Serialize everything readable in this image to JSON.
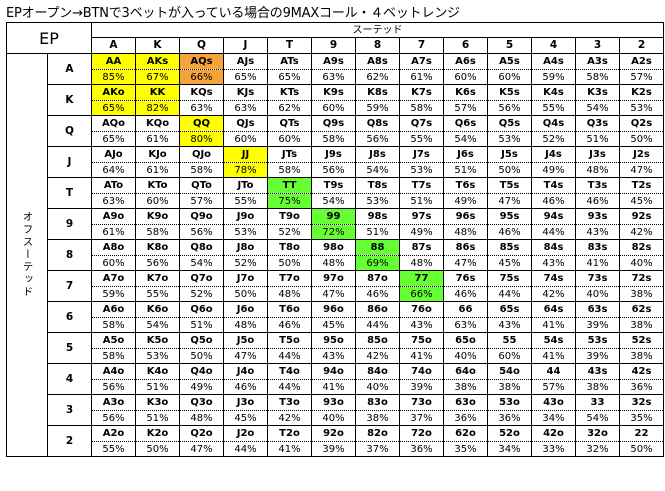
{
  "title": "EPオープン→BTNで3ベットが入っている場合の9MAXコール・４ベットレンジ",
  "corner_label": "EP",
  "suited_label": "スーテッド",
  "offsuit_label": "オフスーテッド",
  "ranks": [
    "A",
    "K",
    "Q",
    "J",
    "T",
    "9",
    "8",
    "7",
    "6",
    "5",
    "4",
    "3",
    "2"
  ],
  "colors": {
    "yellow": "#FFFF00",
    "orange": "#F4A438",
    "green": "#66FF33",
    "white": "#FFFFFF"
  },
  "rows": [
    {
      "cells": [
        {
          "hand": "AA",
          "pct": "85%",
          "color": "yellow"
        },
        {
          "hand": "AKs",
          "pct": "67%",
          "color": "yellow"
        },
        {
          "hand": "AQs",
          "pct": "66%",
          "color": "orange"
        },
        {
          "hand": "AJs",
          "pct": "65%"
        },
        {
          "hand": "ATs",
          "pct": "65%"
        },
        {
          "hand": "A9s",
          "pct": "63%"
        },
        {
          "hand": "A8s",
          "pct": "62%"
        },
        {
          "hand": "A7s",
          "pct": "61%"
        },
        {
          "hand": "A6s",
          "pct": "60%"
        },
        {
          "hand": "A5s",
          "pct": "60%"
        },
        {
          "hand": "A4s",
          "pct": "59%"
        },
        {
          "hand": "A3s",
          "pct": "58%"
        },
        {
          "hand": "A2s",
          "pct": "57%"
        }
      ]
    },
    {
      "cells": [
        {
          "hand": "AKo",
          "pct": "65%",
          "color": "yellow"
        },
        {
          "hand": "KK",
          "pct": "82%",
          "color": "yellow"
        },
        {
          "hand": "KQs",
          "pct": "63%"
        },
        {
          "hand": "KJs",
          "pct": "63%"
        },
        {
          "hand": "KTs",
          "pct": "62%"
        },
        {
          "hand": "K9s",
          "pct": "60%"
        },
        {
          "hand": "K8s",
          "pct": "59%"
        },
        {
          "hand": "K7s",
          "pct": "58%"
        },
        {
          "hand": "K6s",
          "pct": "57%"
        },
        {
          "hand": "K5s",
          "pct": "56%"
        },
        {
          "hand": "K4s",
          "pct": "55%"
        },
        {
          "hand": "K3s",
          "pct": "54%"
        },
        {
          "hand": "K2s",
          "pct": "53%"
        }
      ]
    },
    {
      "cells": [
        {
          "hand": "AQo",
          "pct": "65%"
        },
        {
          "hand": "KQo",
          "pct": "61%"
        },
        {
          "hand": "QQ",
          "pct": "80%",
          "color": "yellow"
        },
        {
          "hand": "QJs",
          "pct": "60%"
        },
        {
          "hand": "QTs",
          "pct": "60%"
        },
        {
          "hand": "Q9s",
          "pct": "58%"
        },
        {
          "hand": "Q8s",
          "pct": "56%"
        },
        {
          "hand": "Q7s",
          "pct": "55%"
        },
        {
          "hand": "Q6s",
          "pct": "54%"
        },
        {
          "hand": "Q5s",
          "pct": "53%"
        },
        {
          "hand": "Q4s",
          "pct": "52%"
        },
        {
          "hand": "Q3s",
          "pct": "51%"
        },
        {
          "hand": "Q2s",
          "pct": "50%"
        }
      ]
    },
    {
      "cells": [
        {
          "hand": "AJo",
          "pct": "64%"
        },
        {
          "hand": "KJo",
          "pct": "61%"
        },
        {
          "hand": "QJo",
          "pct": "58%"
        },
        {
          "hand": "JJ",
          "pct": "78%",
          "color": "yellow"
        },
        {
          "hand": "JTs",
          "pct": "58%"
        },
        {
          "hand": "J9s",
          "pct": "56%"
        },
        {
          "hand": "J8s",
          "pct": "54%"
        },
        {
          "hand": "J7s",
          "pct": "53%"
        },
        {
          "hand": "J6s",
          "pct": "51%"
        },
        {
          "hand": "J5s",
          "pct": "50%"
        },
        {
          "hand": "J4s",
          "pct": "49%"
        },
        {
          "hand": "J3s",
          "pct": "48%"
        },
        {
          "hand": "J2s",
          "pct": "47%"
        }
      ]
    },
    {
      "cells": [
        {
          "hand": "ATo",
          "pct": "63%"
        },
        {
          "hand": "KTo",
          "pct": "60%"
        },
        {
          "hand": "QTo",
          "pct": "57%"
        },
        {
          "hand": "JTo",
          "pct": "55%"
        },
        {
          "hand": "TT",
          "pct": "75%",
          "color": "green"
        },
        {
          "hand": "T9s",
          "pct": "54%"
        },
        {
          "hand": "T8s",
          "pct": "53%"
        },
        {
          "hand": "T7s",
          "pct": "51%"
        },
        {
          "hand": "T6s",
          "pct": "49%"
        },
        {
          "hand": "T5s",
          "pct": "47%"
        },
        {
          "hand": "T4s",
          "pct": "46%"
        },
        {
          "hand": "T3s",
          "pct": "46%"
        },
        {
          "hand": "T2s",
          "pct": "45%"
        }
      ]
    },
    {
      "cells": [
        {
          "hand": "A9o",
          "pct": "61%"
        },
        {
          "hand": "K9o",
          "pct": "58%"
        },
        {
          "hand": "Q9o",
          "pct": "56%"
        },
        {
          "hand": "J9o",
          "pct": "53%"
        },
        {
          "hand": "T9o",
          "pct": "52%"
        },
        {
          "hand": "99",
          "pct": "72%",
          "color": "green"
        },
        {
          "hand": "98s",
          "pct": "51%"
        },
        {
          "hand": "97s",
          "pct": "49%"
        },
        {
          "hand": "96s",
          "pct": "48%"
        },
        {
          "hand": "95s",
          "pct": "46%"
        },
        {
          "hand": "94s",
          "pct": "44%"
        },
        {
          "hand": "93s",
          "pct": "43%"
        },
        {
          "hand": "92s",
          "pct": "42%"
        }
      ]
    },
    {
      "cells": [
        {
          "hand": "A8o",
          "pct": "60%"
        },
        {
          "hand": "K8o",
          "pct": "56%"
        },
        {
          "hand": "Q8o",
          "pct": "54%"
        },
        {
          "hand": "J8o",
          "pct": "52%"
        },
        {
          "hand": "T8o",
          "pct": "50%"
        },
        {
          "hand": "98o",
          "pct": "48%"
        },
        {
          "hand": "88",
          "pct": "69%",
          "color": "green"
        },
        {
          "hand": "87s",
          "pct": "48%"
        },
        {
          "hand": "86s",
          "pct": "47%"
        },
        {
          "hand": "85s",
          "pct": "45%"
        },
        {
          "hand": "84s",
          "pct": "43%"
        },
        {
          "hand": "83s",
          "pct": "41%"
        },
        {
          "hand": "82s",
          "pct": "40%"
        }
      ]
    },
    {
      "cells": [
        {
          "hand": "A7o",
          "pct": "59%"
        },
        {
          "hand": "K7o",
          "pct": "55%"
        },
        {
          "hand": "Q7o",
          "pct": "52%"
        },
        {
          "hand": "J7o",
          "pct": "50%"
        },
        {
          "hand": "T7o",
          "pct": "48%"
        },
        {
          "hand": "97o",
          "pct": "47%"
        },
        {
          "hand": "87o",
          "pct": "46%"
        },
        {
          "hand": "77",
          "pct": "66%",
          "color": "green"
        },
        {
          "hand": "76s",
          "pct": "46%"
        },
        {
          "hand": "75s",
          "pct": "44%"
        },
        {
          "hand": "74s",
          "pct": "42%"
        },
        {
          "hand": "73s",
          "pct": "40%"
        },
        {
          "hand": "72s",
          "pct": "38%"
        }
      ]
    },
    {
      "cells": [
        {
          "hand": "A6o",
          "pct": "58%"
        },
        {
          "hand": "K6o",
          "pct": "54%"
        },
        {
          "hand": "Q6o",
          "pct": "51%"
        },
        {
          "hand": "J6o",
          "pct": "48%"
        },
        {
          "hand": "T6o",
          "pct": "46%"
        },
        {
          "hand": "96o",
          "pct": "45%"
        },
        {
          "hand": "86o",
          "pct": "44%"
        },
        {
          "hand": "76o",
          "pct": "43%"
        },
        {
          "hand": "66",
          "pct": "63%"
        },
        {
          "hand": "65s",
          "pct": "43%"
        },
        {
          "hand": "64s",
          "pct": "41%"
        },
        {
          "hand": "63s",
          "pct": "39%"
        },
        {
          "hand": "62s",
          "pct": "38%"
        }
      ]
    },
    {
      "cells": [
        {
          "hand": "A5o",
          "pct": "58%"
        },
        {
          "hand": "K5o",
          "pct": "53%"
        },
        {
          "hand": "Q5o",
          "pct": "50%"
        },
        {
          "hand": "J5o",
          "pct": "47%"
        },
        {
          "hand": "T5o",
          "pct": "44%"
        },
        {
          "hand": "95o",
          "pct": "43%"
        },
        {
          "hand": "85o",
          "pct": "42%"
        },
        {
          "hand": "75o",
          "pct": "41%"
        },
        {
          "hand": "65o",
          "pct": "40%"
        },
        {
          "hand": "55",
          "pct": "60%"
        },
        {
          "hand": "54s",
          "pct": "41%"
        },
        {
          "hand": "53s",
          "pct": "39%"
        },
        {
          "hand": "52s",
          "pct": "38%"
        }
      ]
    },
    {
      "cells": [
        {
          "hand": "A4o",
          "pct": "56%"
        },
        {
          "hand": "K4o",
          "pct": "51%"
        },
        {
          "hand": "Q4o",
          "pct": "49%"
        },
        {
          "hand": "J4o",
          "pct": "46%"
        },
        {
          "hand": "T4o",
          "pct": "44%"
        },
        {
          "hand": "94o",
          "pct": "41%"
        },
        {
          "hand": "84o",
          "pct": "40%"
        },
        {
          "hand": "74o",
          "pct": "39%"
        },
        {
          "hand": "64o",
          "pct": "38%"
        },
        {
          "hand": "54o",
          "pct": "38%"
        },
        {
          "hand": "44",
          "pct": "57%"
        },
        {
          "hand": "43s",
          "pct": "38%"
        },
        {
          "hand": "42s",
          "pct": "36%"
        }
      ]
    },
    {
      "cells": [
        {
          "hand": "A3o",
          "pct": "56%"
        },
        {
          "hand": "K3o",
          "pct": "51%"
        },
        {
          "hand": "Q3o",
          "pct": "48%"
        },
        {
          "hand": "J3o",
          "pct": "45%"
        },
        {
          "hand": "T3o",
          "pct": "42%"
        },
        {
          "hand": "93o",
          "pct": "40%"
        },
        {
          "hand": "83o",
          "pct": "38%"
        },
        {
          "hand": "73o",
          "pct": "37%"
        },
        {
          "hand": "63o",
          "pct": "36%"
        },
        {
          "hand": "53o",
          "pct": "36%"
        },
        {
          "hand": "43o",
          "pct": "34%"
        },
        {
          "hand": "33",
          "pct": "54%"
        },
        {
          "hand": "32s",
          "pct": "35%"
        }
      ]
    },
    {
      "cells": [
        {
          "hand": "A2o",
          "pct": "55%"
        },
        {
          "hand": "K2o",
          "pct": "50%"
        },
        {
          "hand": "Q2o",
          "pct": "47%"
        },
        {
          "hand": "J2o",
          "pct": "44%"
        },
        {
          "hand": "T2o",
          "pct": "41%"
        },
        {
          "hand": "92o",
          "pct": "39%"
        },
        {
          "hand": "82o",
          "pct": "37%"
        },
        {
          "hand": "72o",
          "pct": "36%"
        },
        {
          "hand": "62o",
          "pct": "35%"
        },
        {
          "hand": "52o",
          "pct": "34%"
        },
        {
          "hand": "42o",
          "pct": "33%"
        },
        {
          "hand": "32o",
          "pct": "32%"
        },
        {
          "hand": "22",
          "pct": "50%"
        }
      ]
    }
  ]
}
